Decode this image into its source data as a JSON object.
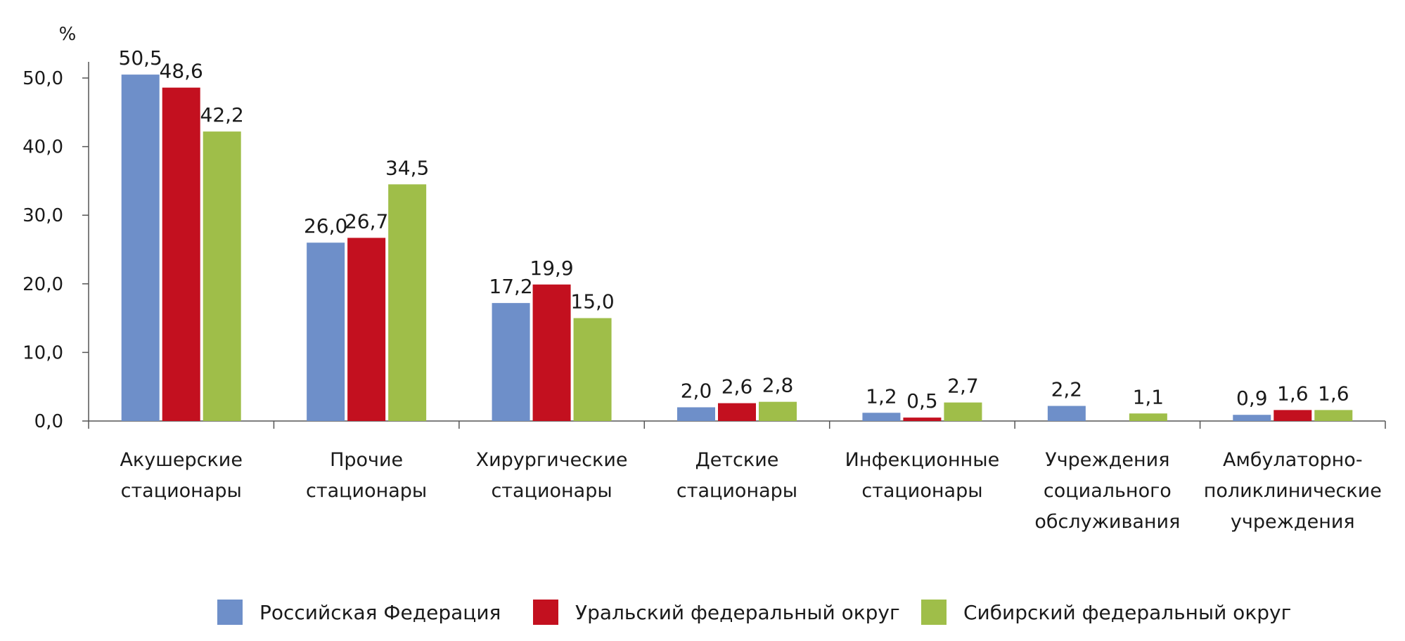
{
  "chart_data": {
    "type": "bar",
    "unit_label": "%",
    "categories": [
      [
        "Акушерские",
        "стационары"
      ],
      [
        "Прочие",
        "стационары"
      ],
      [
        "Хирургические",
        "стационары"
      ],
      [
        "Детские",
        "стационары"
      ],
      [
        "Инфекционные",
        "стационары"
      ],
      [
        "Учреждения",
        "социального",
        "обслуживания"
      ],
      [
        "Амбулаторно-",
        "поликлинические",
        "учреждения"
      ]
    ],
    "series": [
      {
        "name": "Российская Федерация",
        "color": "#6e8fc9",
        "values": [
          50.5,
          26.0,
          17.2,
          2.0,
          1.2,
          2.2,
          0.9
        ],
        "labels": [
          "50,5",
          "26,0",
          "17,2",
          "2,0",
          "1,2",
          "2,2",
          "0,9"
        ]
      },
      {
        "name": "Уральский федеральный округ",
        "color": "#c3101f",
        "values": [
          48.6,
          26.7,
          19.9,
          2.6,
          0.5,
          0,
          1.6
        ],
        "labels": [
          "48,6",
          "26,7",
          "19,9",
          "2,6",
          "0,5",
          "",
          "1,6"
        ]
      },
      {
        "name": "Сибирский федеральный округ",
        "color": "#9fbe49",
        "values": [
          42.2,
          34.5,
          15.0,
          2.8,
          2.7,
          1.1,
          1.6
        ],
        "labels": [
          "42,2",
          "34,5",
          "15,0",
          "2,8",
          "2,7",
          "1,1",
          "1,6"
        ]
      }
    ],
    "y_ticks": [
      "0,0",
      "10,0",
      "20,0",
      "30,0",
      "40,0",
      "50,0"
    ],
    "y_tick_values": [
      0,
      10,
      20,
      30,
      40,
      50
    ],
    "ylim": [
      0,
      50
    ],
    "grid": false,
    "legend_position": "bottom"
  }
}
